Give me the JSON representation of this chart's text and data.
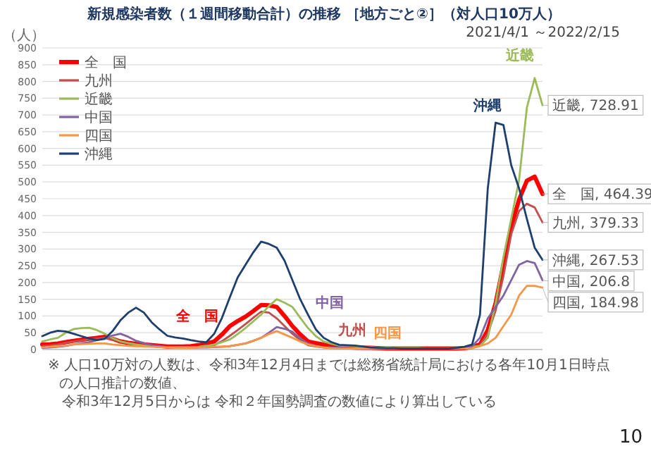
{
  "chart_data": {
    "type": "line",
    "title": "新規感染者数（１週間移動合計）の推移 ［地方ごと②］（対人口10万人）",
    "subtitle": "2021/4/1 ～2022/2/15",
    "ylabel": "（人）",
    "categories": [
      null,
      null,
      null,
      null,
      null,
      null,
      null,
      null,
      null,
      null,
      null,
      null,
      null,
      null,
      null,
      null,
      null,
      null,
      null,
      null,
      null,
      null,
      null,
      null,
      null,
      null,
      null,
      null,
      null,
      null,
      null,
      null,
      null,
      null,
      null,
      null,
      null,
      null,
      null,
      null,
      null,
      null,
      null,
      null,
      null,
      null,
      null,
      null,
      null,
      null,
      null,
      null,
      null,
      null,
      null,
      null,
      null,
      null,
      null,
      null,
      null,
      null,
      null,
      null,
      null
    ],
    "ylim": [
      0,
      900
    ],
    "yticks": [
      0,
      50,
      100,
      150,
      200,
      250,
      300,
      350,
      400,
      450,
      500,
      550,
      600,
      650,
      700,
      750,
      800,
      850,
      900
    ],
    "grid": "y",
    "legend": "top left",
    "tick_labels": "y",
    "series": [
      {
        "name": "全　国",
        "color": "#ff0000",
        "values": [
          15,
          16,
          18,
          22,
          26,
          29,
          32,
          35,
          38,
          32,
          24,
          20,
          17,
          15,
          13,
          11,
          9,
          9,
          9,
          10,
          13,
          18,
          24,
          45,
          70,
          85,
          98,
          115,
          133,
          132,
          127,
          100,
          70,
          45,
          24,
          19,
          15,
          12,
          9,
          7,
          6,
          5,
          5,
          4,
          3,
          3,
          3,
          3,
          3,
          3,
          3,
          3,
          3,
          3,
          4,
          8,
          15,
          58,
          138,
          253,
          367,
          447,
          504,
          516,
          464.39
        ],
        "value_labels": [
          null,
          null,
          null,
          null,
          null,
          null,
          null,
          null,
          null,
          null,
          null,
          null,
          null,
          null,
          null,
          null,
          null,
          null,
          null,
          null,
          null,
          null,
          null,
          null,
          null,
          null,
          null,
          null,
          null,
          null,
          null,
          null,
          null,
          null,
          null,
          null,
          null,
          null,
          null,
          null,
          null,
          null,
          null,
          null,
          null,
          null,
          null,
          null,
          null,
          null,
          null,
          null,
          null,
          null,
          null,
          null,
          null,
          null,
          null,
          null,
          null,
          null,
          null,
          null,
          "全　国, 464.39"
        ]
      },
      {
        "name": "九州",
        "color": "#c0504d",
        "values": [
          10,
          12,
          15,
          20,
          24,
          27,
          30,
          33,
          35,
          30,
          24,
          19,
          15,
          12,
          10,
          8,
          7,
          6,
          6,
          6,
          7,
          10,
          13,
          25,
          41,
          58,
          76,
          95,
          113,
          110,
          93,
          70,
          47,
          28,
          13,
          9,
          6,
          5,
          5,
          4,
          3,
          3,
          3,
          3,
          3,
          3,
          3,
          3,
          3,
          3,
          3,
          3,
          3,
          3,
          4,
          7,
          13,
          47,
          116,
          219,
          344,
          413,
          435,
          424,
          379.33
        ],
        "value_labels": [
          null,
          null,
          null,
          null,
          null,
          null,
          null,
          null,
          null,
          null,
          null,
          null,
          null,
          null,
          null,
          null,
          null,
          null,
          null,
          null,
          null,
          null,
          null,
          null,
          null,
          null,
          null,
          null,
          null,
          null,
          null,
          null,
          null,
          null,
          null,
          null,
          null,
          null,
          null,
          null,
          null,
          null,
          null,
          null,
          null,
          null,
          null,
          null,
          null,
          null,
          null,
          null,
          null,
          null,
          null,
          null,
          null,
          null,
          null,
          null,
          null,
          null,
          null,
          null,
          "九州, 379.33"
        ]
      },
      {
        "name": "近畿",
        "color": "#9bbb59",
        "values": [
          24,
          30,
          35,
          50,
          61,
          64,
          65,
          58,
          47,
          34,
          24,
          19,
          15,
          12,
          10,
          8,
          7,
          7,
          7,
          7,
          8,
          11,
          15,
          22,
          30,
          46,
          64,
          84,
          104,
          130,
          150,
          140,
          127,
          95,
          64,
          40,
          24,
          17,
          12,
          11,
          10,
          8,
          7,
          6,
          6,
          5,
          5,
          5,
          5,
          4,
          4,
          4,
          4,
          5,
          7,
          8,
          10,
          35,
          138,
          275,
          390,
          505,
          722,
          810,
          728.91
        ],
        "value_labels": [
          null,
          null,
          null,
          null,
          null,
          null,
          null,
          null,
          null,
          null,
          null,
          null,
          null,
          null,
          null,
          null,
          null,
          null,
          null,
          null,
          null,
          null,
          null,
          null,
          null,
          null,
          null,
          null,
          null,
          null,
          null,
          null,
          null,
          null,
          null,
          null,
          null,
          null,
          null,
          null,
          null,
          null,
          null,
          null,
          null,
          null,
          null,
          null,
          null,
          null,
          null,
          null,
          null,
          null,
          null,
          null,
          null,
          null,
          null,
          null,
          null,
          null,
          null,
          null,
          "近畿, 728.91"
        ]
      },
      {
        "name": "中国",
        "color": "#8064a2",
        "values": [
          5,
          6,
          8,
          11,
          15,
          18,
          22,
          28,
          35,
          42,
          47,
          38,
          26,
          19,
          13,
          10,
          7,
          6,
          5,
          5,
          6,
          6,
          7,
          8,
          10,
          14,
          18,
          26,
          35,
          50,
          67,
          62,
          53,
          33,
          18,
          11,
          7,
          6,
          5,
          4,
          3,
          3,
          3,
          3,
          3,
          3,
          3,
          3,
          3,
          3,
          3,
          3,
          3,
          3,
          4,
          10,
          35,
          93,
          127,
          161,
          207,
          253,
          264,
          258,
          206.8
        ],
        "value_labels": [
          null,
          null,
          null,
          null,
          null,
          null,
          null,
          null,
          null,
          null,
          null,
          null,
          null,
          null,
          null,
          null,
          null,
          null,
          null,
          null,
          null,
          null,
          null,
          null,
          null,
          null,
          null,
          null,
          null,
          null,
          null,
          null,
          null,
          null,
          null,
          null,
          null,
          null,
          null,
          null,
          null,
          null,
          null,
          null,
          null,
          null,
          null,
          null,
          null,
          null,
          null,
          null,
          null,
          null,
          null,
          null,
          null,
          null,
          null,
          null,
          null,
          null,
          null,
          null,
          "中国, 206.8"
        ]
      },
      {
        "name": "四国",
        "color": "#f79646",
        "values": [
          6,
          8,
          10,
          12,
          15,
          16,
          17,
          18,
          18,
          15,
          13,
          11,
          10,
          9,
          8,
          7,
          6,
          5,
          5,
          5,
          6,
          7,
          8,
          9,
          10,
          14,
          18,
          26,
          35,
          46,
          55,
          45,
          35,
          24,
          15,
          10,
          6,
          4,
          3,
          3,
          3,
          3,
          3,
          3,
          3,
          3,
          3,
          3,
          3,
          3,
          3,
          3,
          3,
          3,
          3,
          4,
          10,
          18,
          35,
          70,
          104,
          161,
          190,
          190,
          184.98
        ],
        "value_labels": [
          null,
          null,
          null,
          null,
          null,
          null,
          null,
          null,
          null,
          null,
          null,
          null,
          null,
          null,
          null,
          null,
          null,
          null,
          null,
          null,
          null,
          null,
          null,
          null,
          null,
          null,
          null,
          null,
          null,
          null,
          null,
          null,
          null,
          null,
          null,
          null,
          null,
          null,
          null,
          null,
          null,
          null,
          null,
          null,
          null,
          null,
          null,
          null,
          null,
          null,
          null,
          null,
          null,
          null,
          null,
          null,
          null,
          null,
          null,
          null,
          null,
          null,
          null,
          null,
          "四国, 184.98"
        ]
      },
      {
        "name": "沖縄",
        "color": "#1f3f6e",
        "values": [
          40,
          50,
          56,
          54,
          47,
          40,
          33,
          28,
          32,
          55,
          87,
          110,
          125,
          110,
          81,
          60,
          41,
          36,
          33,
          28,
          24,
          22,
          47,
          95,
          156,
          215,
          253,
          290,
          322,
          315,
          304,
          265,
          207,
          150,
          104,
          60,
          35,
          22,
          14,
          13,
          12,
          9,
          6,
          5,
          4,
          4,
          3,
          3,
          3,
          3,
          3,
          3,
          3,
          5,
          8,
          15,
          104,
          481,
          677,
          670,
          550,
          481,
          390,
          304,
          267.53
        ],
        "value_labels": [
          null,
          null,
          null,
          null,
          null,
          null,
          null,
          null,
          null,
          null,
          null,
          null,
          null,
          null,
          null,
          null,
          null,
          null,
          null,
          null,
          null,
          null,
          null,
          null,
          null,
          null,
          null,
          null,
          null,
          null,
          null,
          null,
          null,
          null,
          null,
          null,
          null,
          null,
          null,
          null,
          null,
          null,
          null,
          null,
          null,
          null,
          null,
          null,
          null,
          null,
          null,
          null,
          null,
          null,
          null,
          null,
          null,
          null,
          null,
          null,
          null,
          null,
          null,
          null,
          "沖縄, 267.53"
        ]
      }
    ],
    "annotations": [
      "全　国",
      "九州",
      "近畿",
      "中国",
      "四国",
      "沖縄",
      "※ 人口10万対の人数は、令和3年12月4日までは総務省統計局における各年10月1日時点の人口推計の数値、",
      "令和3年12月5日からは 令和２年国勢調査の数値により算出している",
      "10"
    ]
  }
}
